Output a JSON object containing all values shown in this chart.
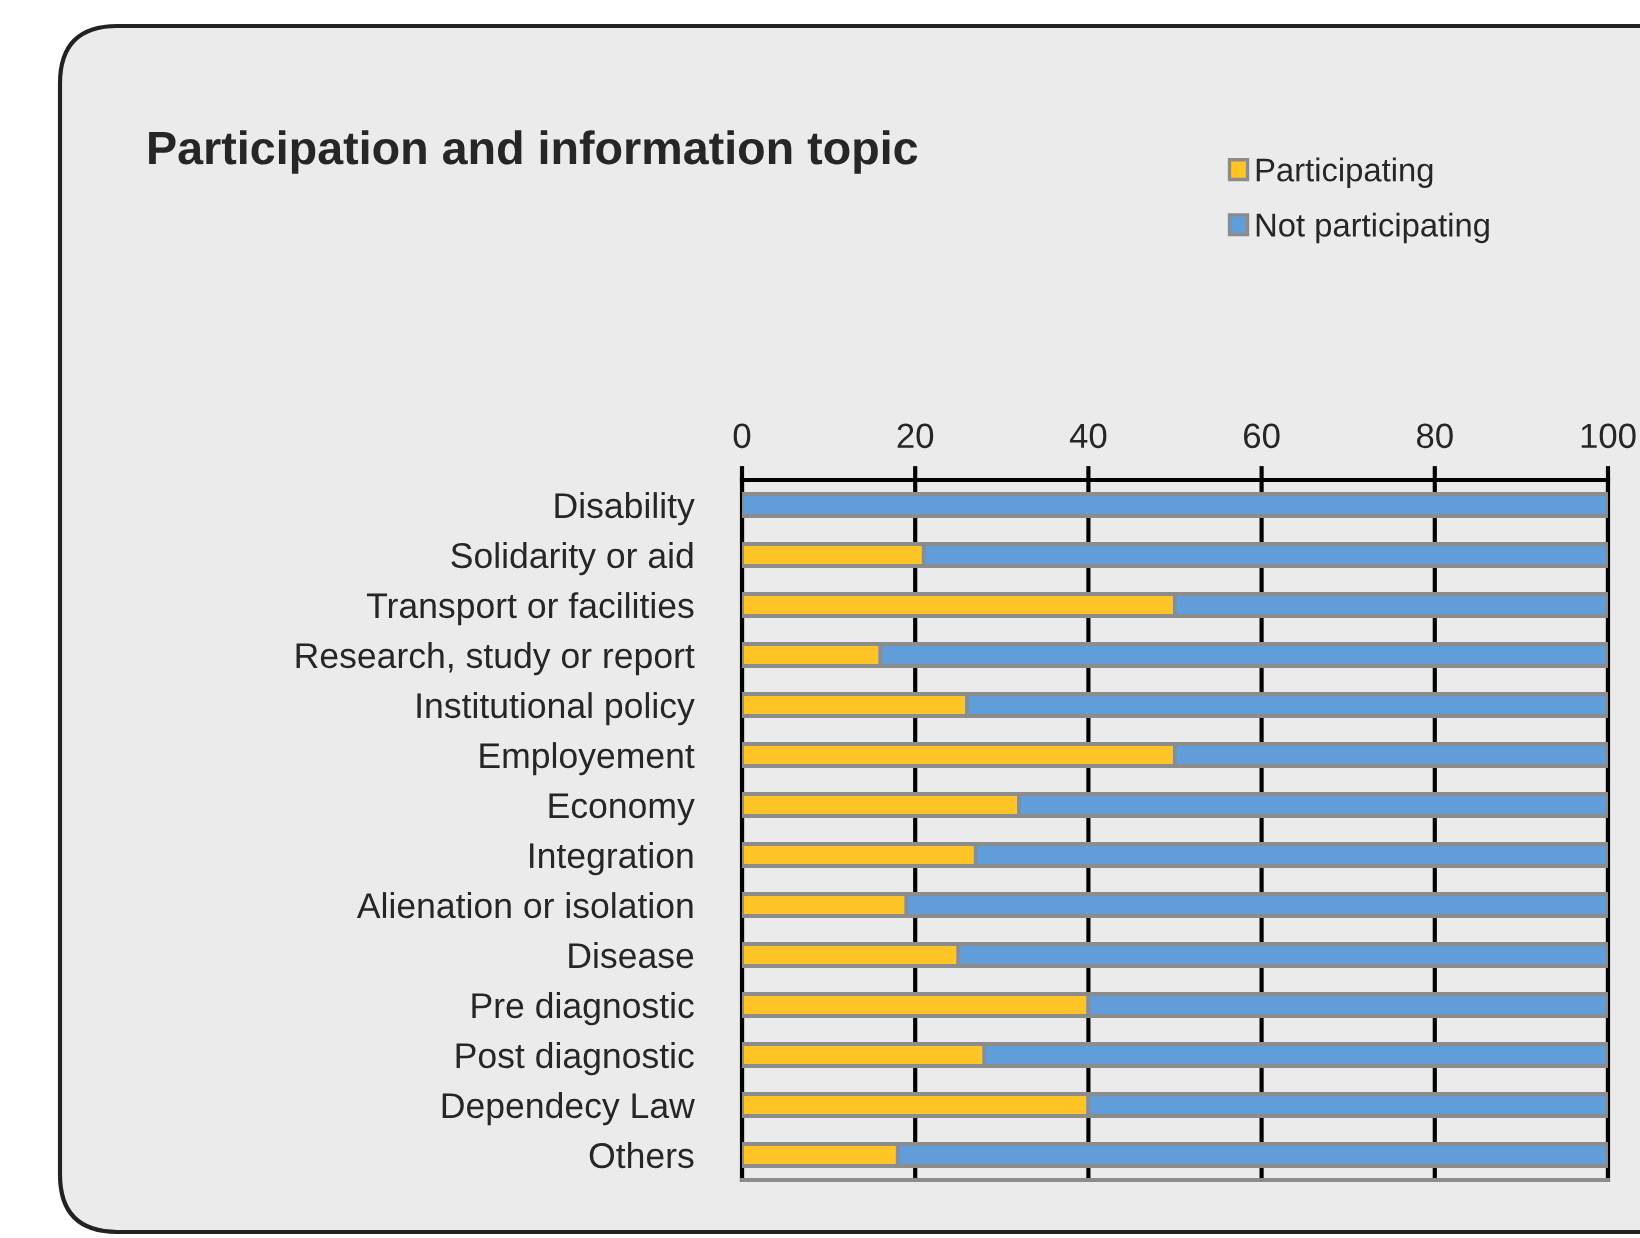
{
  "chart_data": {
    "type": "bar",
    "orientation": "horizontal",
    "stacked": true,
    "title": "Participation and information topic",
    "categories": [
      "Disability",
      "Solidarity or aid",
      "Transport or facilities",
      "Research, study or report",
      "Institutional policy",
      "Employement",
      "Economy",
      "Integration",
      "Alienation or isolation",
      "Disease",
      "Pre diagnostic",
      "Post diagnostic",
      "Dependecy Law",
      "Others"
    ],
    "series": [
      {
        "name": "Participating",
        "color": "#ffc425",
        "values": [
          0,
          21,
          50,
          16,
          26,
          50,
          32,
          27,
          19,
          25,
          40,
          28,
          40,
          18
        ]
      },
      {
        "name": "Not participating",
        "color": "#619ed9",
        "values": [
          100,
          79,
          50,
          84,
          74,
          50,
          68,
          73,
          81,
          75,
          60,
          72,
          60,
          82
        ]
      }
    ],
    "xlim": [
      0,
      100
    ],
    "xticks": [
      0,
      20,
      40,
      60,
      80,
      100
    ],
    "grid": "x",
    "legend": "top right"
  }
}
